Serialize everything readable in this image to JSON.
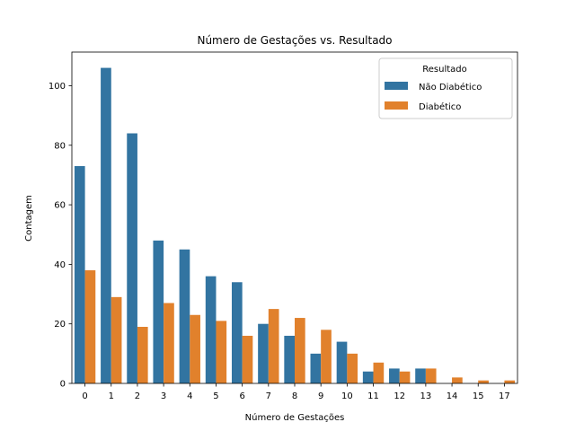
{
  "chart_data": {
    "type": "bar",
    "title": "Número de Gestações vs. Resultado",
    "xlabel": "Número de Gestações",
    "ylabel": "Contagem",
    "categories": [
      "0",
      "1",
      "2",
      "3",
      "4",
      "5",
      "6",
      "7",
      "8",
      "9",
      "10",
      "11",
      "12",
      "13",
      "14",
      "15",
      "17"
    ],
    "series": [
      {
        "name": "Não Diabético",
        "color": "#3274a1",
        "values": [
          73,
          106,
          84,
          48,
          45,
          36,
          34,
          20,
          16,
          10,
          14,
          4,
          5,
          5,
          0,
          0,
          0
        ]
      },
      {
        "name": "Diabético",
        "color": "#e1812c",
        "values": [
          38,
          29,
          19,
          27,
          23,
          21,
          16,
          25,
          22,
          18,
          10,
          7,
          4,
          5,
          2,
          1,
          1
        ]
      }
    ],
    "ylim": [
      0,
      111.3
    ],
    "yticks": [
      0,
      20,
      40,
      60,
      80,
      100
    ],
    "legend": {
      "title": "Resultado",
      "position": "top-right"
    },
    "grid": false
  }
}
